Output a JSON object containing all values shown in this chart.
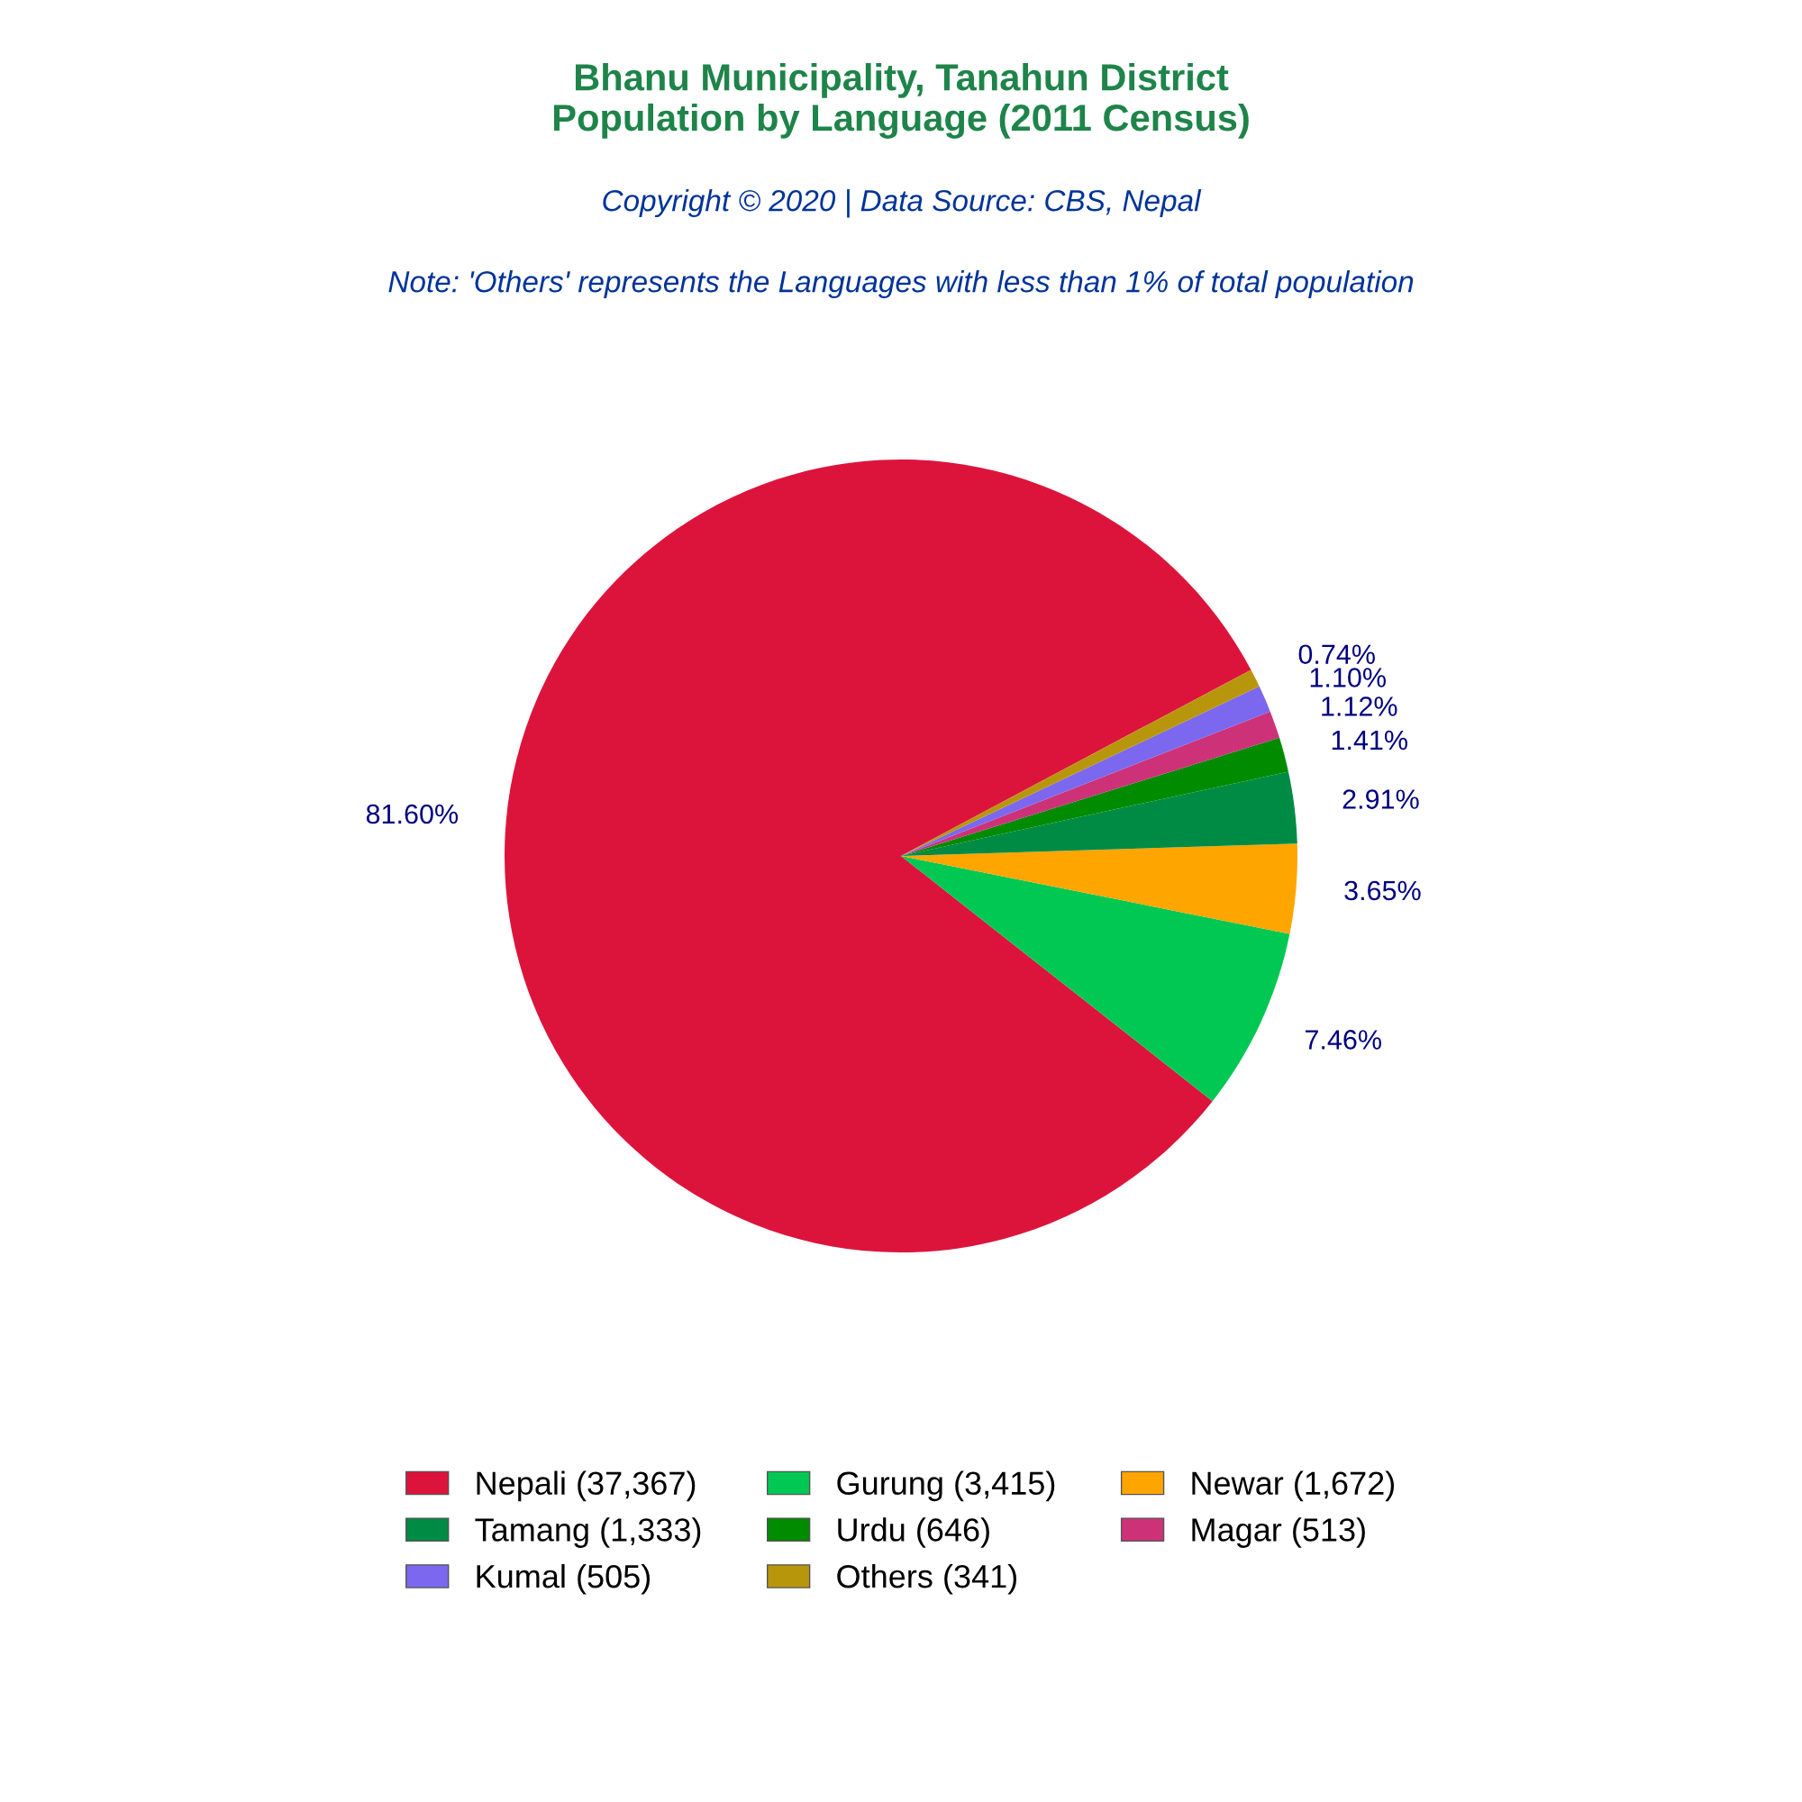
{
  "chart_data": {
    "type": "pie",
    "title": "Bhanu Municipality, Tanahun District\nPopulation by Language (2011 Census)",
    "subtitle": "Copyright © 2020 | Data Source: CBS, Nepal",
    "annotations": [
      "Note: 'Others' represents the Languages with less than 1% of total population"
    ],
    "categories": [
      "Nepali (37,367)",
      "Gurung (3,415)",
      "Newar (1,672)",
      "Tamang (1,333)",
      "Urdu (646)",
      "Magar (513)",
      "Kumal (505)",
      "Others (341)"
    ],
    "values": [
      81.6,
      7.46,
      3.65,
      2.91,
      1.41,
      1.12,
      1.1,
      0.74
    ],
    "value_labels": [
      "81.60%",
      "7.46%",
      "3.65%",
      "2.91%",
      "1.41%",
      "1.12%",
      "1.10%",
      "0.74%"
    ],
    "colors": [
      "#dc143c",
      "#00c853",
      "#ffa500",
      "#008b45",
      "#008b00",
      "#cd3278",
      "#7b68ee",
      "#b8960c"
    ],
    "legend": "bottom"
  }
}
